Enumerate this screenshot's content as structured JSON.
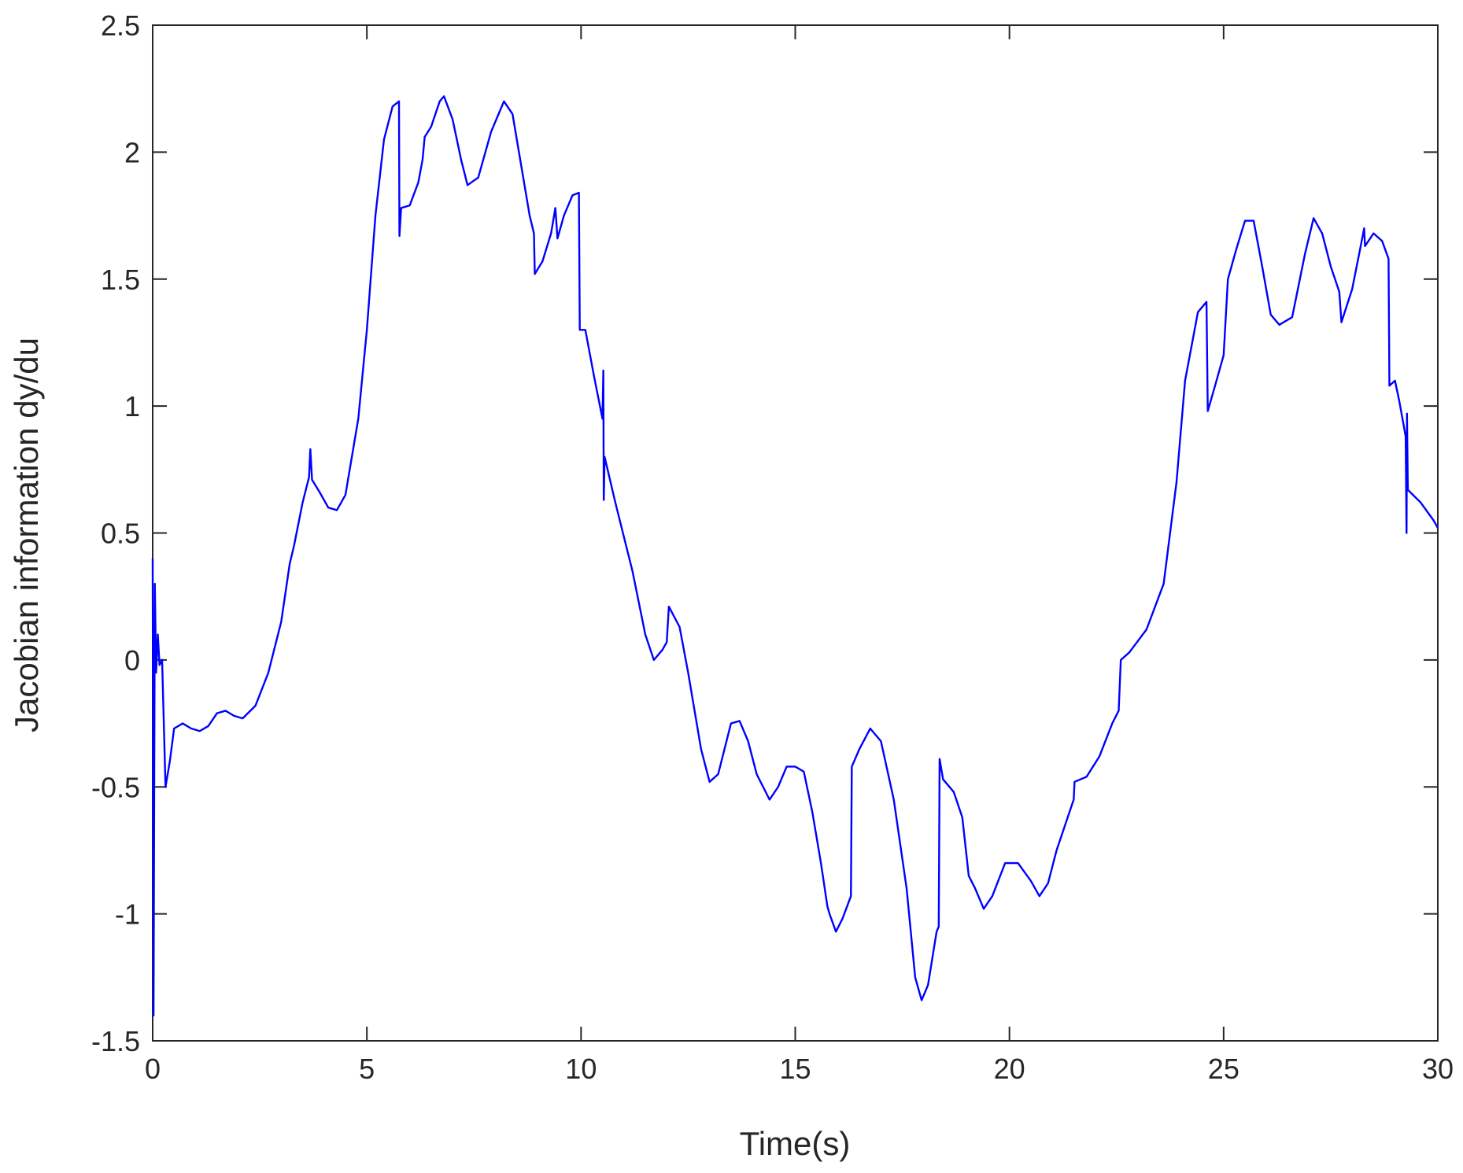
{
  "chart_data": {
    "type": "line",
    "x_label": "Time(s)",
    "y_label": "Jacobian information dy/du",
    "xlim": [
      0,
      30
    ],
    "xticks": [
      0,
      5,
      10,
      15,
      20,
      25,
      30
    ],
    "ylim": [
      -1.5,
      2.5
    ],
    "yticks": [
      -1.5,
      -1,
      -0.5,
      0,
      0.5,
      1,
      1.5,
      2,
      2.5
    ],
    "grid": false,
    "x": [
      0,
      0.02,
      0.05,
      0.08,
      0.12,
      0.16,
      0.22,
      0.3,
      0.4,
      0.5,
      0.7,
      0.9,
      1.1,
      1.3,
      1.5,
      1.7,
      1.9,
      2.1,
      2.4,
      2.7,
      3.0,
      3.2,
      3.3,
      3.5,
      3.65,
      3.68,
      3.72,
      3.9,
      4.1,
      4.3,
      4.5,
      4.8,
      5.0,
      5.2,
      5.4,
      5.6,
      5.75,
      5.76,
      5.8,
      6.0,
      6.2,
      6.3,
      6.35,
      6.5,
      6.7,
      6.8,
      7.0,
      7.2,
      7.35,
      7.6,
      7.9,
      8.2,
      8.4,
      8.6,
      8.8,
      8.9,
      8.92,
      9.1,
      9.3,
      9.4,
      9.45,
      9.6,
      9.8,
      9.95,
      9.97,
      10.1,
      10.3,
      10.5,
      10.52,
      10.53,
      10.55,
      10.8,
      11.2,
      11.5,
      11.7,
      11.9,
      12.0,
      12.05,
      12.3,
      12.5,
      12.6,
      12.8,
      13.0,
      13.2,
      13.5,
      13.7,
      13.9,
      14.1,
      14.4,
      14.6,
      14.8,
      15.0,
      15.2,
      15.4,
      15.6,
      15.75,
      15.8,
      15.95,
      16.1,
      16.3,
      16.32,
      16.5,
      16.75,
      17.0,
      17.3,
      17.6,
      17.8,
      17.95,
      18.1,
      18.3,
      18.35,
      18.37,
      18.45,
      18.7,
      18.9,
      19.05,
      19.2,
      19.4,
      19.6,
      19.9,
      20.2,
      20.5,
      20.7,
      20.9,
      21.1,
      21.3,
      21.5,
      21.52,
      21.8,
      22.1,
      22.4,
      22.55,
      22.6,
      22.8,
      23.2,
      23.6,
      23.9,
      24.1,
      24.4,
      24.6,
      24.63,
      24.8,
      25.0,
      25.1,
      25.3,
      25.5,
      25.7,
      25.9,
      26.1,
      26.3,
      26.6,
      26.9,
      27.1,
      27.3,
      27.5,
      27.7,
      27.75,
      28.0,
      28.2,
      28.28,
      28.3,
      28.5,
      28.7,
      28.85,
      28.87,
      29.0,
      29.1,
      29.25,
      29.27,
      29.28,
      29.3,
      29.6,
      29.9,
      30.0
    ],
    "series": [
      {
        "color": "#0000ff",
        "values": [
          0.4,
          -1.4,
          0.3,
          -0.05,
          0.1,
          -0.02,
          0.0,
          -0.5,
          -0.4,
          -0.27,
          -0.25,
          -0.27,
          -0.28,
          -0.26,
          -0.21,
          -0.2,
          -0.22,
          -0.23,
          -0.18,
          -0.05,
          0.15,
          0.38,
          0.45,
          0.62,
          0.72,
          0.83,
          0.71,
          0.66,
          0.6,
          0.59,
          0.65,
          0.95,
          1.3,
          1.75,
          2.05,
          2.18,
          2.2,
          1.67,
          1.78,
          1.79,
          1.88,
          1.97,
          2.06,
          2.1,
          2.2,
          2.22,
          2.13,
          1.97,
          1.87,
          1.9,
          2.08,
          2.2,
          2.15,
          1.95,
          1.75,
          1.68,
          1.52,
          1.57,
          1.68,
          1.78,
          1.66,
          1.75,
          1.83,
          1.84,
          1.3,
          1.3,
          1.12,
          0.95,
          1.14,
          0.63,
          0.8,
          0.62,
          0.35,
          0.1,
          0.0,
          0.04,
          0.07,
          0.21,
          0.13,
          -0.05,
          -0.15,
          -0.35,
          -0.48,
          -0.45,
          -0.25,
          -0.24,
          -0.32,
          -0.45,
          -0.55,
          -0.5,
          -0.42,
          -0.42,
          -0.44,
          -0.6,
          -0.8,
          -0.97,
          -1.0,
          -1.07,
          -1.02,
          -0.93,
          -0.42,
          -0.35,
          -0.27,
          -0.32,
          -0.55,
          -0.9,
          -1.25,
          -1.34,
          -1.28,
          -1.07,
          -1.05,
          -0.39,
          -0.47,
          -0.52,
          -0.62,
          -0.85,
          -0.9,
          -0.98,
          -0.93,
          -0.8,
          -0.8,
          -0.87,
          -0.93,
          -0.88,
          -0.75,
          -0.65,
          -0.55,
          -0.48,
          -0.46,
          -0.38,
          -0.25,
          -0.2,
          0.0,
          0.03,
          0.12,
          0.3,
          0.7,
          1.1,
          1.37,
          1.41,
          0.98,
          1.08,
          1.2,
          1.5,
          1.62,
          1.73,
          1.73,
          1.55,
          1.36,
          1.32,
          1.35,
          1.6,
          1.74,
          1.68,
          1.55,
          1.45,
          1.33,
          1.46,
          1.63,
          1.7,
          1.63,
          1.68,
          1.65,
          1.58,
          1.08,
          1.1,
          1.02,
          0.88,
          0.5,
          0.97,
          0.67,
          0.62,
          0.55,
          0.52
        ]
      }
    ]
  }
}
